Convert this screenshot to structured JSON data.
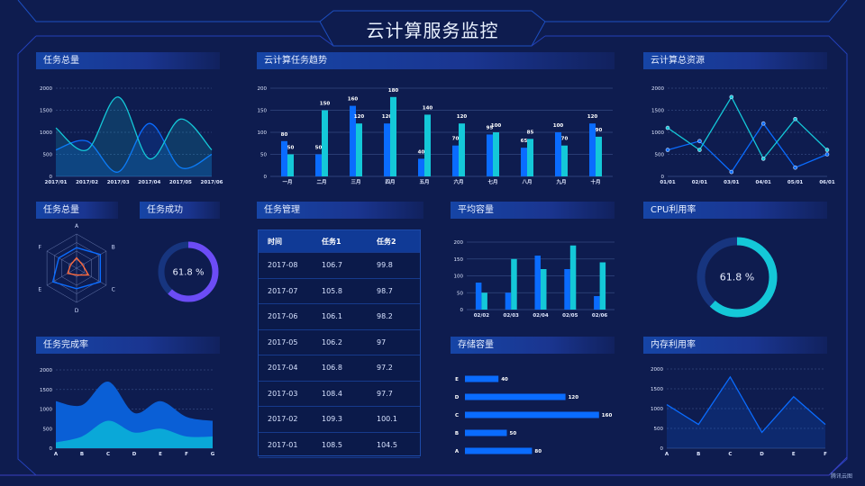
{
  "header": {
    "title": "云计算服务监控"
  },
  "panels": {
    "p1": "任务总量",
    "p2": "云计算任务趋势",
    "p3": "云计算总资源",
    "p4": "任务总量",
    "p5": "任务成功",
    "p6": "任务管理",
    "p7": "平均容量",
    "p8": "CPU利用率",
    "p9": "任务完成率",
    "p10": "存储容量",
    "p11": "内存利用率"
  },
  "colors": {
    "blue": "#0a6cff",
    "cyan": "#14c8d8",
    "purple": "#6c4cf5",
    "orange": "#ff6a3d",
    "background": "#0e1c4f"
  },
  "table": {
    "headers": [
      "时间",
      "任务1",
      "任务2"
    ],
    "rows": [
      [
        "2017-08",
        "106.7",
        "99.8"
      ],
      [
        "2017-07",
        "105.8",
        "98.7"
      ],
      [
        "2017-06",
        "106.1",
        "98.2"
      ],
      [
        "2017-05",
        "106.2",
        "97"
      ],
      [
        "2017-04",
        "106.8",
        "97.2"
      ],
      [
        "2017-03",
        "108.4",
        "97.7"
      ],
      [
        "2017-02",
        "109.3",
        "100.1"
      ],
      [
        "2017-01",
        "108.5",
        "104.5"
      ]
    ]
  },
  "watermark": "腾讯云图",
  "chart_data": [
    {
      "id": "total",
      "type": "area",
      "smooth": true,
      "categories": [
        "2017/01",
        "2017/02",
        "2017/03",
        "2017/04",
        "2017/05",
        "2017/06"
      ],
      "ylim": [
        0,
        2000
      ],
      "yticks": [
        "0",
        "500",
        "1000",
        "1500",
        "2000"
      ],
      "grid": true,
      "series": [
        {
          "values": [
            600,
            800,
            100,
            1200,
            200,
            500
          ],
          "color": "#0a6cff"
        },
        {
          "values": [
            1100,
            600,
            1800,
            400,
            1300,
            600
          ],
          "color": "#14c8d8"
        }
      ]
    },
    {
      "id": "trend",
      "type": "bar",
      "categories": [
        "一月",
        "二月",
        "三月",
        "四月",
        "五月",
        "六月",
        "七月",
        "八月",
        "九月",
        "十月"
      ],
      "ylim": [
        0,
        200
      ],
      "yticks": [
        "0",
        "50",
        "100",
        "150",
        "200"
      ],
      "grid": true,
      "data_labels": true,
      "series": [
        {
          "values": [
            80,
            50,
            160,
            120,
            40,
            70,
            95,
            65,
            100,
            120
          ],
          "color": "#0a6cff"
        },
        {
          "values": [
            50,
            150,
            120,
            180,
            140,
            120,
            100,
            85,
            70,
            90
          ],
          "color": "#14c8d8"
        }
      ]
    },
    {
      "id": "resource",
      "type": "line",
      "markers": true,
      "categories": [
        "01/01",
        "02/01",
        "03/01",
        "04/01",
        "05/01",
        "06/01"
      ],
      "ylim": [
        0,
        2000
      ],
      "yticks": [
        "0",
        "500",
        "1000",
        "1500",
        "2000"
      ],
      "grid": true,
      "series": [
        {
          "values": [
            600,
            800,
            100,
            1200,
            200,
            500
          ],
          "color": "#0a6cff"
        },
        {
          "values": [
            1100,
            600,
            1800,
            400,
            1300,
            600
          ],
          "color": "#14c8d8"
        }
      ]
    },
    {
      "id": "radar",
      "type": "radar",
      "indicators": [
        "A",
        "B",
        "C",
        "D",
        "E",
        "F"
      ],
      "max": 100,
      "series": [
        {
          "values": [
            60,
            80,
            80,
            60,
            80,
            60
          ],
          "color": "#0a6cff"
        },
        {
          "values": [
            30,
            20,
            40,
            20,
            30,
            20
          ],
          "color": "#ff6a3d"
        }
      ]
    },
    {
      "id": "success",
      "type": "gauge",
      "value": 61.8,
      "label": "61.8 %",
      "color": "#6c4cf5"
    },
    {
      "id": "avg",
      "type": "bar",
      "categories": [
        "02/02",
        "02/03",
        "02/04",
        "02/05",
        "02/06"
      ],
      "ylim": [
        0,
        200
      ],
      "yticks": [
        "0",
        "50",
        "100",
        "150",
        "200"
      ],
      "grid": true,
      "series": [
        {
          "values": [
            80,
            50,
            160,
            120,
            40
          ],
          "color": "#0a6cff"
        },
        {
          "values": [
            50,
            150,
            120,
            190,
            140
          ],
          "color": "#14c8d8"
        }
      ]
    },
    {
      "id": "cpu",
      "type": "gauge",
      "value": 61.8,
      "label": "61.8 %",
      "color": "#14c8d8"
    },
    {
      "id": "completion",
      "type": "area",
      "stacked": true,
      "smooth": true,
      "categories": [
        "A",
        "B",
        "C",
        "D",
        "E",
        "F",
        "G"
      ],
      "ylim": [
        0,
        2000
      ],
      "yticks": [
        "0",
        "500",
        "1000",
        "1500",
        "2000"
      ],
      "grid": true,
      "series": [
        {
          "values": [
            150,
            300,
            700,
            400,
            500,
            300,
            300
          ],
          "color": "#0aa8d8"
        },
        {
          "values": [
            1050,
            800,
            1000,
            500,
            700,
            500,
            400
          ],
          "color": "#0a5fd6"
        }
      ]
    },
    {
      "id": "storage",
      "type": "hbar",
      "categories": [
        "A",
        "B",
        "C",
        "D",
        "E"
      ],
      "values": [
        80,
        50,
        160,
        120,
        40
      ],
      "color": "#0a6cff",
      "data_labels": true
    },
    {
      "id": "memory",
      "type": "area",
      "smooth": false,
      "categories": [
        "A",
        "B",
        "C",
        "D",
        "E",
        "F"
      ],
      "ylim": [
        0,
        2000
      ],
      "yticks": [
        "0",
        "500",
        "1000",
        "1500",
        "2000"
      ],
      "grid": true,
      "series": [
        {
          "values": [
            1100,
            600,
            1800,
            400,
            1300,
            600
          ],
          "color": "#0a6cff"
        }
      ]
    }
  ]
}
